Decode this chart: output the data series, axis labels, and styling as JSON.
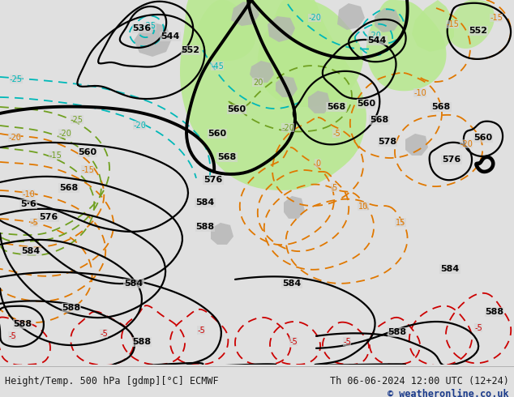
{
  "title_left": "Height/Temp. 500 hPa [gdmp][°C] ECMWF",
  "title_right": "Th 06-06-2024 12:00 UTC (12+24)",
  "copyright": "© weatheronline.co.uk",
  "bg_color": "#e0e0e0",
  "map_bg_color": "#d4d4d4",
  "green_fill_color": "#b8e890",
  "bottom_bar_color": "#ececec",
  "font_color": "#1a1a1a",
  "copyright_color": "#1a3a8a",
  "black": "#000000",
  "cyan": "#00b8b8",
  "orange": "#e07800",
  "red": "#cc0000",
  "green_c": "#70a020",
  "lw_black": 1.6,
  "lw_thick": 2.8,
  "lw_temp": 1.3
}
